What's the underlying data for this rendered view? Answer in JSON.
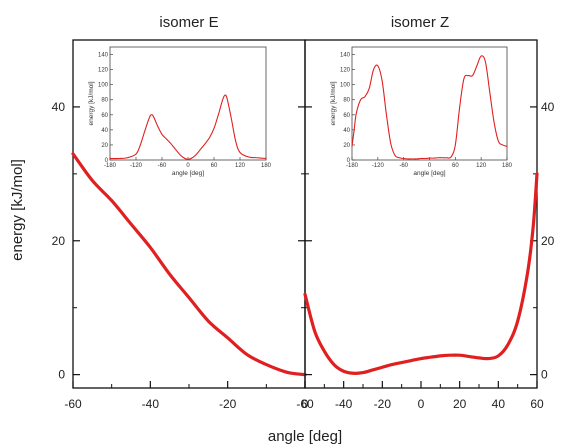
{
  "figure": {
    "ylabel": "energy [kJ/mol]",
    "xlabel": "angle [deg]",
    "line_color": "#e02020",
    "axis_color": "#111111"
  },
  "chart_data": [
    {
      "type": "line",
      "title": "isomer E",
      "xlim": [
        -60,
        0
      ],
      "ylim": [
        -2,
        50
      ],
      "xticks": [
        -60,
        -40,
        -20,
        0
      ],
      "yticks": [
        0,
        20,
        40
      ],
      "ytick_labels_side": "left",
      "series": [
        {
          "x": [
            -60,
            -55,
            -50,
            -45,
            -40,
            -35,
            -30,
            -25,
            -20,
            -15,
            -10,
            -5,
            -2,
            0
          ],
          "y": [
            33,
            29,
            26,
            22.5,
            19,
            15,
            11.5,
            8,
            5.5,
            3,
            1.5,
            0.4,
            0.1,
            0
          ]
        }
      ],
      "inset": {
        "xlabel": "angle [deg]",
        "ylabel": "energy [kJ/mol]",
        "xlim": [
          -180,
          180
        ],
        "ylim": [
          0,
          150
        ],
        "xticks": [
          -180,
          -120,
          -60,
          0,
          60,
          120,
          180
        ],
        "yticks": [
          0,
          20,
          40,
          60,
          80,
          100,
          120,
          140
        ],
        "x": [
          -180,
          -160,
          -140,
          -120,
          -110,
          -100,
          -90,
          -85,
          -80,
          -70,
          -60,
          -50,
          -40,
          -30,
          -20,
          -10,
          0,
          10,
          20,
          30,
          40,
          50,
          60,
          70,
          80,
          85,
          90,
          100,
          110,
          120,
          140,
          160,
          180
        ],
        "y": [
          2,
          2,
          3,
          8,
          20,
          38,
          55,
          60,
          58,
          45,
          34,
          28,
          22,
          15,
          8,
          3,
          1,
          3,
          8,
          15,
          22,
          30,
          42,
          60,
          80,
          86,
          82,
          55,
          25,
          10,
          4,
          3,
          2
        ]
      }
    },
    {
      "type": "line",
      "title": "isomer Z",
      "xlim": [
        -60,
        60
      ],
      "ylim": [
        -2,
        50
      ],
      "xticks": [
        -60,
        -40,
        -20,
        0,
        20,
        40,
        60
      ],
      "yticks": [
        0,
        20,
        40
      ],
      "ytick_labels_side": "right",
      "series": [
        {
          "x": [
            -60,
            -55,
            -50,
            -45,
            -40,
            -35,
            -30,
            -25,
            -20,
            -15,
            -10,
            -5,
            0,
            5,
            10,
            15,
            20,
            25,
            30,
            35,
            40,
            45,
            50,
            55,
            58,
            60
          ],
          "y": [
            12,
            6.5,
            3.5,
            1.5,
            0.5,
            0.2,
            0.3,
            0.7,
            1.1,
            1.5,
            1.8,
            2.1,
            2.4,
            2.6,
            2.8,
            2.9,
            2.9,
            2.7,
            2.5,
            2.4,
            2.8,
            4.5,
            8,
            15,
            22,
            30
          ]
        }
      ],
      "inset": {
        "xlabel": "angle [deg]",
        "ylabel": "energy [kJ/mol]",
        "xlim": [
          -180,
          180
        ],
        "ylim": [
          0,
          150
        ],
        "xticks": [
          -180,
          -120,
          -60,
          0,
          60,
          120,
          180
        ],
        "yticks": [
          0,
          20,
          40,
          60,
          80,
          100,
          120,
          140
        ],
        "x": [
          -180,
          -175,
          -170,
          -160,
          -150,
          -140,
          -130,
          -120,
          -110,
          -100,
          -90,
          -80,
          -70,
          -60,
          -50,
          -40,
          -30,
          -20,
          -10,
          0,
          10,
          20,
          30,
          40,
          50,
          60,
          70,
          80,
          90,
          100,
          110,
          120,
          130,
          140,
          150,
          160,
          170,
          180
        ],
        "y": [
          18,
          40,
          62,
          80,
          84,
          95,
          120,
          125,
          105,
          60,
          22,
          6,
          3,
          2,
          1.5,
          1.5,
          1.5,
          2,
          2,
          2.5,
          2.5,
          3,
          3,
          3,
          4,
          20,
          70,
          108,
          112,
          112,
          125,
          138,
          130,
          90,
          50,
          25,
          20,
          18
        ]
      }
    }
  ]
}
